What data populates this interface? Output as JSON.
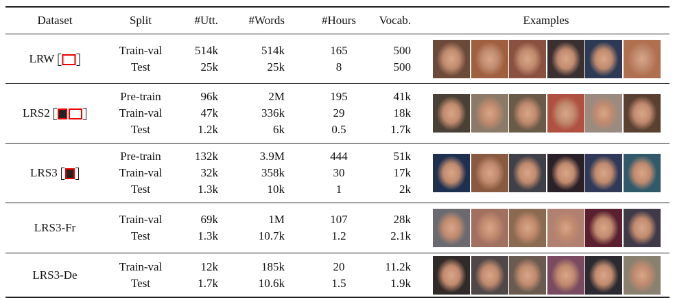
{
  "table": {
    "header": [
      "Dataset",
      "Split",
      "#Utt.",
      "#Words",
      "#Hours",
      "Vocab.",
      "Examples"
    ],
    "groups": [
      {
        "dataset": "LRW",
        "citations": 1,
        "rows": [
          [
            "Train-val",
            "514k",
            "514k",
            "165",
            "500"
          ],
          [
            "Test",
            "25k",
            "25k",
            "8",
            "500"
          ]
        ]
      },
      {
        "dataset": "LRS2",
        "citations": 2,
        "rows": [
          [
            "Pre-train",
            "96k",
            "2M",
            "195",
            "41k"
          ],
          [
            "Train-val",
            "47k",
            "336k",
            "29",
            "18k"
          ],
          [
            "Test",
            "1.2k",
            "6k",
            "0.5",
            "1.7k"
          ]
        ]
      },
      {
        "dataset": "LRS3",
        "citations": 1,
        "rows": [
          [
            "Pre-train",
            "132k",
            "3.9M",
            "444",
            "51k"
          ],
          [
            "Train-val",
            "32k",
            "358k",
            "30",
            "17k"
          ],
          [
            "Test",
            "1.3k",
            "10k",
            "1",
            "2k"
          ]
        ]
      },
      {
        "dataset": "LRS3-Fr",
        "citations": 0,
        "rows": [
          [
            "Train-val",
            "69k",
            "1M",
            "107",
            "28k"
          ],
          [
            "Test",
            "1.3k",
            "10.7k",
            "1.2",
            "2.1k"
          ]
        ]
      },
      {
        "dataset": "LRS3-De",
        "citations": 0,
        "rows": [
          [
            "Train-val",
            "12k",
            "185k",
            "20",
            "11.2k"
          ],
          [
            "Test",
            "1.7k",
            "10.6k",
            "1.5",
            "1.9k"
          ]
        ]
      }
    ]
  }
}
